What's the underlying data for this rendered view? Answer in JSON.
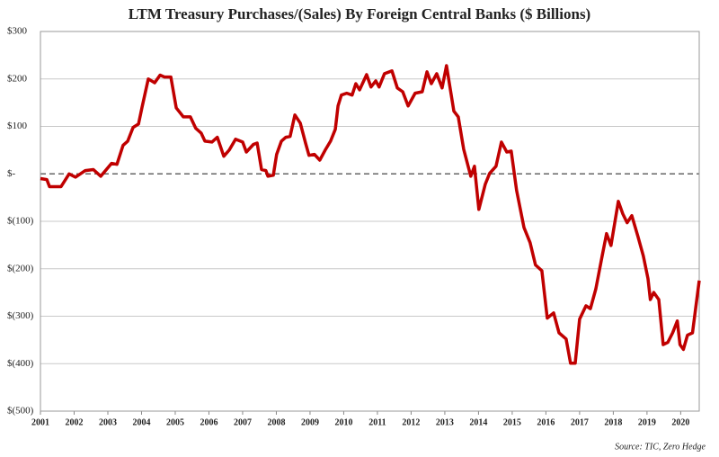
{
  "chart_data": {
    "type": "line",
    "title": "LTM Treasury Purchases/(Sales) By Foreign Central Banks ($ Billions)",
    "source": "Source: TIC, Zero Hedge",
    "x": [
      2001.0,
      2001.19,
      2001.27,
      2001.61,
      2001.85,
      2002.04,
      2002.33,
      2002.57,
      2002.79,
      2003.11,
      2003.27,
      2003.45,
      2003.59,
      2003.75,
      2003.91,
      2004.01,
      2004.2,
      2004.39,
      2004.55,
      2004.68,
      2004.87,
      2005.03,
      2005.24,
      2005.45,
      2005.61,
      2005.77,
      2005.88,
      2006.09,
      2006.25,
      2006.44,
      2006.6,
      2006.79,
      2007.0,
      2007.11,
      2007.32,
      2007.43,
      2007.56,
      2007.69,
      2007.75,
      2007.91,
      2008.01,
      2008.15,
      2008.28,
      2008.41,
      2008.55,
      2008.71,
      2008.87,
      2008.97,
      2009.13,
      2009.29,
      2009.45,
      2009.61,
      2009.75,
      2009.83,
      2009.93,
      2010.09,
      2010.25,
      2010.36,
      2010.47,
      2010.68,
      2010.81,
      2010.95,
      2011.05,
      2011.21,
      2011.43,
      2011.59,
      2011.75,
      2011.91,
      2012.12,
      2012.33,
      2012.47,
      2012.6,
      2012.76,
      2012.92,
      2013.05,
      2013.27,
      2013.4,
      2013.56,
      2013.77,
      2013.88,
      2014.01,
      2014.2,
      2014.33,
      2014.52,
      2014.68,
      2014.84,
      2014.97,
      2015.13,
      2015.35,
      2015.53,
      2015.69,
      2015.88,
      2016.04,
      2016.23,
      2016.39,
      2016.6,
      2016.73,
      2016.87,
      2017.0,
      2017.19,
      2017.32,
      2017.48,
      2017.67,
      2017.8,
      2017.93,
      2018.15,
      2018.28,
      2018.41,
      2018.55,
      2018.73,
      2018.89,
      2019.03,
      2019.1,
      2019.2,
      2019.35,
      2019.48,
      2019.62,
      2019.76,
      2019.9,
      2019.98,
      2020.08,
      2020.2,
      2020.35,
      2020.55
    ],
    "series": [
      {
        "name": "LTM Treasury Purchases/(Sales)",
        "color": "#c00000",
        "values": [
          -10,
          -12,
          -27,
          -27,
          0,
          -7,
          7,
          9,
          -5,
          22,
          20,
          60,
          69,
          98,
          105,
          139,
          200,
          192,
          208,
          204,
          204,
          139,
          120,
          120,
          96,
          86,
          69,
          67,
          77,
          37,
          50,
          73,
          67,
          46,
          62,
          65,
          9,
          7,
          -5,
          -3,
          41,
          69,
          77,
          79,
          124,
          107,
          64,
          39,
          41,
          29,
          50,
          69,
          94,
          143,
          166,
          170,
          166,
          190,
          177,
          209,
          183,
          196,
          183,
          211,
          217,
          181,
          173,
          143,
          170,
          173,
          215,
          190,
          211,
          181,
          228,
          132,
          120,
          52,
          -5,
          16,
          -75,
          -22,
          1,
          16,
          67,
          46,
          48,
          -35,
          -113,
          -145,
          -192,
          -204,
          -304,
          -293,
          -335,
          -348,
          -399,
          -399,
          -306,
          -278,
          -284,
          -243,
          -173,
          -126,
          -151,
          -58,
          -84,
          -103,
          -88,
          -132,
          -173,
          -221,
          -265,
          -250,
          -265,
          -360,
          -355,
          -335,
          -310,
          -360,
          -370,
          -340,
          -335,
          -225
        ]
      }
    ],
    "xlim": [
      2001,
      2020.55
    ],
    "xticks": [
      2001,
      2002,
      2003,
      2004,
      2005,
      2006,
      2007,
      2008,
      2009,
      2010,
      2011,
      2012,
      2013,
      2014,
      2015,
      2016,
      2017,
      2018,
      2019,
      2020
    ],
    "ylim": [
      -500,
      300
    ],
    "yticks": [
      {
        "value": -500,
        "label": "$(500)"
      },
      {
        "value": -400,
        "label": "$(400)"
      },
      {
        "value": -300,
        "label": "$(300)"
      },
      {
        "value": -200,
        "label": "$(200)"
      },
      {
        "value": -100,
        "label": "$(100)"
      },
      {
        "value": 0,
        "label": "$-"
      },
      {
        "value": 100,
        "label": "$100"
      },
      {
        "value": 200,
        "label": "$200"
      },
      {
        "value": 300,
        "label": "$300"
      }
    ],
    "grid": true
  }
}
